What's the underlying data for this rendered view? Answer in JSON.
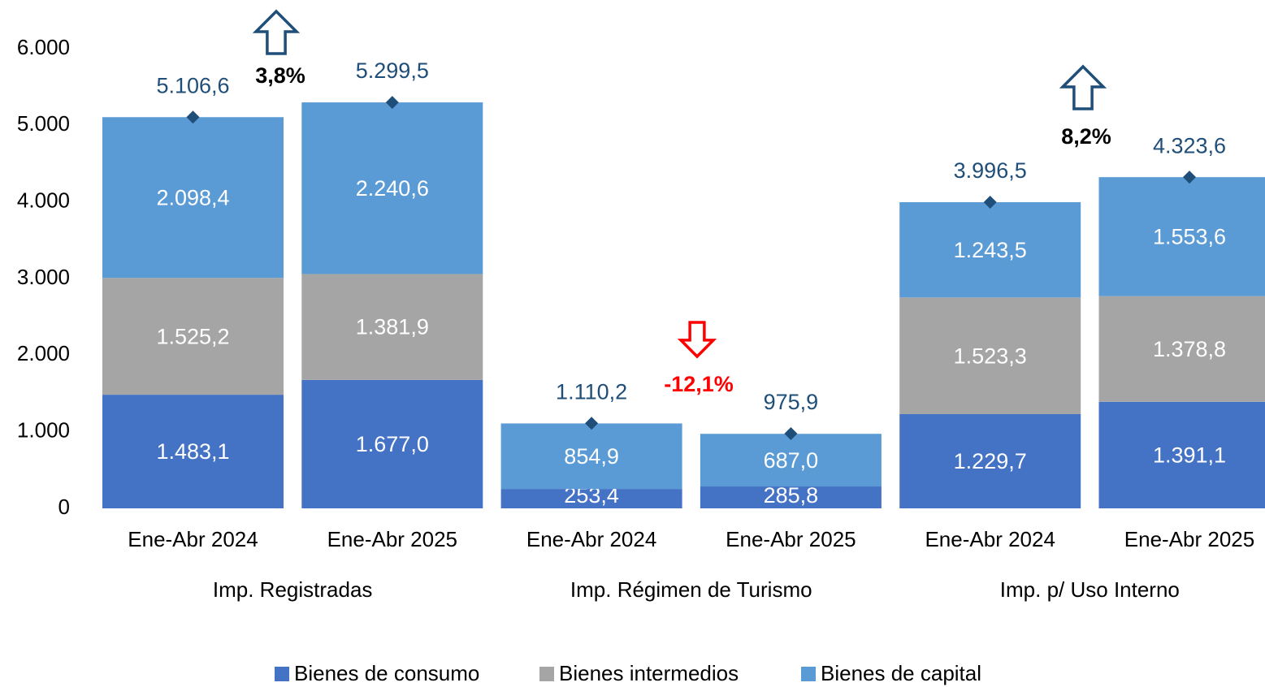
{
  "chart_data": {
    "type": "stacked_bar",
    "categories": [
      "Ene-Abr 2024",
      "Ene-Abr 2025",
      "Ene-Abr 2024",
      "Ene-Abr 2025",
      "Ene-Abr 2024",
      "Ene-Abr 2025"
    ],
    "groups": [
      "Imp. Registradas",
      "Imp. Régimen de Turismo",
      "Imp. p/ Uso Interno"
    ],
    "series": [
      {
        "name": "Bienes de consumo",
        "color": "#4472c4",
        "values": [
          1483.1,
          1677.0,
          253.4,
          285.8,
          1229.7,
          1391.1
        ],
        "value_labels": [
          "1.483,1",
          "1.677,0",
          "253,4",
          "285,8",
          "1.229,7",
          "1.391,1"
        ]
      },
      {
        "name": "Bienes intermedios",
        "color": "#a5a5a5",
        "values": [
          1525.2,
          1381.9,
          null,
          null,
          1523.3,
          1378.8
        ],
        "value_labels": [
          "1.525,2",
          "1.381,9",
          null,
          null,
          "1.523,3",
          "1.378,8"
        ]
      },
      {
        "name": "Bienes de capital",
        "color": "#5b9bd5",
        "values": [
          2098.4,
          2240.6,
          854.9,
          687.0,
          1243.5,
          1553.6
        ],
        "value_labels": [
          "2.098,4",
          "2.240,6",
          "854,9",
          "687,0",
          "1.243,5",
          "1.553,6"
        ]
      }
    ],
    "totals": {
      "color": "#1f4e79",
      "values": [
        5106.6,
        5299.5,
        1110.2,
        975.9,
        3996.5,
        4323.6
      ],
      "value_labels": [
        "5.106,6",
        "5.299,5",
        "1.110,2",
        "975,9",
        "3.996,5",
        "4.323,6"
      ]
    },
    "annotations": [
      {
        "text": "3,8%",
        "direction": "up",
        "color": "#000000",
        "arrow_color": "#1f4e79"
      },
      {
        "text": "-12,1%",
        "direction": "down",
        "color": "#ff0000",
        "arrow_color": "#ff0000"
      },
      {
        "text": "8,2%",
        "direction": "up",
        "color": "#000000",
        "arrow_color": "#1f4e79"
      }
    ],
    "ylim": [
      0,
      6000
    ],
    "yticks": [
      0,
      {
        "value": 1000,
        "label": "1.000"
      },
      {
        "value": 2000,
        "label": "2.000"
      },
      {
        "value": 3000,
        "label": "3.000"
      },
      {
        "value": 4000,
        "label": "4.000"
      },
      {
        "value": 5000,
        "label": "5.000"
      },
      {
        "value": 6000,
        "label": "6.000"
      }
    ],
    "grid": false,
    "legend": "bottom"
  }
}
